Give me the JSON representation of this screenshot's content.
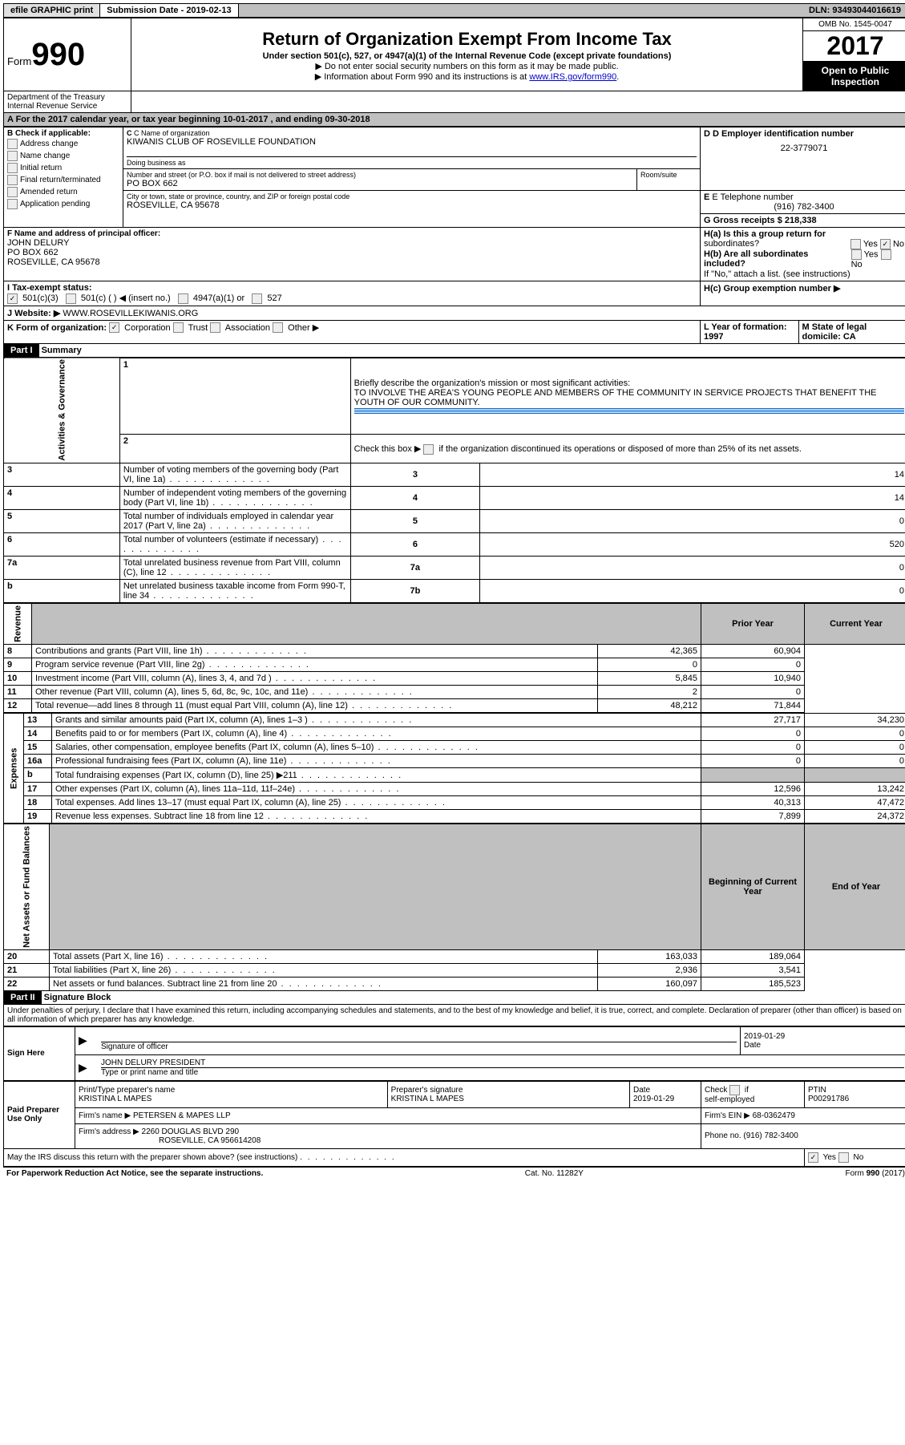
{
  "topbar": {
    "efile": "efile GRAPHIC print",
    "submission": "Submission Date - 2019-02-13",
    "dln": "DLN: 93493044016619"
  },
  "header": {
    "form_label": "Form",
    "form_num": "990",
    "dept1": "Department of the Treasury",
    "dept2": "Internal Revenue Service",
    "title": "Return of Organization Exempt From Income Tax",
    "subtitle": "Under section 501(c), 527, or 4947(a)(1) of the Internal Revenue Code (except private foundations)",
    "note1": "▶ Do not enter social security numbers on this form as it may be made public.",
    "note2": "▶ Information about Form 990 and its instructions is at ",
    "note2_link": "www.IRS.gov/form990",
    "omb": "OMB No. 1545-0047",
    "year": "2017",
    "inspect1": "Open to Public",
    "inspect2": "Inspection"
  },
  "sectionA": "A  For the 2017 calendar year, or tax year beginning 10-01-2017   , and ending 09-30-2018",
  "boxB": {
    "label": "B Check if applicable:",
    "items": [
      "Address change",
      "Name change",
      "Initial return",
      "Final return/terminated",
      "Amended return",
      "Application pending"
    ]
  },
  "boxC": {
    "label": "C Name of organization",
    "name": "KIWANIS CLUB OF ROSEVILLE FOUNDATION",
    "dba": "Doing business as",
    "addr_label": "Number and street (or P.O. box if mail is not delivered to street address)",
    "room": "Room/suite",
    "addr": "PO BOX 662",
    "city_label": "City or town, state or province, country, and ZIP or foreign postal code",
    "city": "ROSEVILLE, CA  95678"
  },
  "boxD": {
    "label": "D Employer identification number",
    "ein": "22-3779071"
  },
  "boxE": {
    "label": "E Telephone number",
    "phone": "(916) 782-3400"
  },
  "boxG": {
    "label": "G Gross receipts $ 218,338"
  },
  "boxF": {
    "label": "F  Name and address of principal officer:",
    "name": "JOHN DELURY",
    "addr": "PO BOX 662",
    "city": "ROSEVILLE, CA  95678"
  },
  "boxH": {
    "ha": "H(a)  Is this a group return for",
    "ha2": "subordinates?",
    "hb": "H(b)  Are all subordinates included?",
    "hb_note": "If \"No,\" attach a list. (see instructions)",
    "hc": "H(c)  Group exemption number ▶"
  },
  "boxI": {
    "label": "I  Tax-exempt status:",
    "opt1": "501(c)(3)",
    "opt2": "501(c) (   ) ◀ (insert no.)",
    "opt3": "4947(a)(1) or",
    "opt4": "527"
  },
  "boxJ": {
    "label": "J  Website: ▶",
    "val": "WWW.ROSEVILLEKIWANIS.ORG"
  },
  "boxK": {
    "label": "K Form of organization:",
    "opts": [
      "Corporation",
      "Trust",
      "Association",
      "Other ▶"
    ]
  },
  "boxL": "L Year of formation: 1997",
  "boxM": "M State of legal domicile: CA",
  "part1": {
    "title": "Part I",
    "subtitle": "Summary",
    "line1": "Briefly describe the organization's mission or most significant activities:",
    "mission": "TO INVOLVE THE AREA'S YOUNG PEOPLE AND MEMBERS OF THE COMMUNITY IN SERVICE PROJECTS THAT BENEFIT THE YOUTH OF OUR COMMUNITY.",
    "line2": "Check this box ▶         if the organization discontinued its operations or disposed of more than 25% of its net assets.",
    "sect_gov": "Activities & Governance",
    "sect_rev": "Revenue",
    "sect_exp": "Expenses",
    "sect_net": "Net Assets or Fund Balances",
    "prior": "Prior Year",
    "current": "Current Year",
    "begin": "Beginning of Current Year",
    "end": "End of Year",
    "rows_gov": [
      {
        "n": "3",
        "t": "Number of voting members of the governing body (Part VI, line 1a)",
        "c": "3",
        "v": "14"
      },
      {
        "n": "4",
        "t": "Number of independent voting members of the governing body (Part VI, line 1b)",
        "c": "4",
        "v": "14"
      },
      {
        "n": "5",
        "t": "Total number of individuals employed in calendar year 2017 (Part V, line 2a)",
        "c": "5",
        "v": "0"
      },
      {
        "n": "6",
        "t": "Total number of volunteers (estimate if necessary)",
        "c": "6",
        "v": "520"
      },
      {
        "n": "7a",
        "t": "Total unrelated business revenue from Part VIII, column (C), line 12",
        "c": "7a",
        "v": "0"
      },
      {
        "n": "b",
        "t": "Net unrelated business taxable income from Form 990-T, line 34",
        "c": "7b",
        "v": "0"
      }
    ],
    "rows_rev": [
      {
        "n": "8",
        "t": "Contributions and grants (Part VIII, line 1h)",
        "p": "42,365",
        "c": "60,904"
      },
      {
        "n": "9",
        "t": "Program service revenue (Part VIII, line 2g)",
        "p": "0",
        "c": "0"
      },
      {
        "n": "10",
        "t": "Investment income (Part VIII, column (A), lines 3, 4, and 7d )",
        "p": "5,845",
        "c": "10,940"
      },
      {
        "n": "11",
        "t": "Other revenue (Part VIII, column (A), lines 5, 6d, 8c, 9c, 10c, and 11e)",
        "p": "2",
        "c": "0"
      },
      {
        "n": "12",
        "t": "Total revenue—add lines 8 through 11 (must equal Part VIII, column (A), line 12)",
        "p": "48,212",
        "c": "71,844"
      }
    ],
    "rows_exp": [
      {
        "n": "13",
        "t": "Grants and similar amounts paid (Part IX, column (A), lines 1–3 )",
        "p": "27,717",
        "c": "34,230"
      },
      {
        "n": "14",
        "t": "Benefits paid to or for members (Part IX, column (A), line 4)",
        "p": "0",
        "c": "0"
      },
      {
        "n": "15",
        "t": "Salaries, other compensation, employee benefits (Part IX, column (A), lines 5–10)",
        "p": "0",
        "c": "0"
      },
      {
        "n": "16a",
        "t": "Professional fundraising fees (Part IX, column (A), line 11e)",
        "p": "0",
        "c": "0"
      },
      {
        "n": "b",
        "t": "Total fundraising expenses (Part IX, column (D), line 25) ▶211",
        "p": "",
        "c": ""
      },
      {
        "n": "17",
        "t": "Other expenses (Part IX, column (A), lines 11a–11d, 11f–24e)",
        "p": "12,596",
        "c": "13,242"
      },
      {
        "n": "18",
        "t": "Total expenses. Add lines 13–17 (must equal Part IX, column (A), line 25)",
        "p": "40,313",
        "c": "47,472"
      },
      {
        "n": "19",
        "t": "Revenue less expenses. Subtract line 18 from line 12",
        "p": "7,899",
        "c": "24,372"
      }
    ],
    "rows_net": [
      {
        "n": "20",
        "t": "Total assets (Part X, line 16)",
        "p": "163,033",
        "c": "189,064"
      },
      {
        "n": "21",
        "t": "Total liabilities (Part X, line 26)",
        "p": "2,936",
        "c": "3,541"
      },
      {
        "n": "22",
        "t": "Net assets or fund balances. Subtract line 21 from line 20",
        "p": "160,097",
        "c": "185,523"
      }
    ]
  },
  "part2": {
    "title": "Part II",
    "subtitle": "Signature Block",
    "decl": "Under penalties of perjury, I declare that I have examined this return, including accompanying schedules and statements, and to the best of my knowledge and belief, it is true, correct, and complete. Declaration of preparer (other than officer) is based on all information of which preparer has any knowledge.",
    "sign_here": "Sign Here",
    "sig_officer": "Signature of officer",
    "sig_date": "2019-01-29",
    "date_label": "Date",
    "officer_name": "JOHN DELURY PRESIDENT",
    "type_name": "Type or print name and title",
    "paid": "Paid Preparer Use Only",
    "prep_name_label": "Print/Type preparer's name",
    "prep_name": "KRISTINA L MAPES",
    "prep_sig_label": "Preparer's signature",
    "prep_sig": "KRISTINA L MAPES",
    "prep_date_label": "Date",
    "prep_date": "2019-01-29",
    "self_emp": "Check         if self-employed",
    "ptin_label": "PTIN",
    "ptin": "P00291786",
    "firm_name_label": "Firm's name     ▶",
    "firm_name": "PETERSEN & MAPES LLP",
    "firm_ein_label": "Firm's EIN ▶",
    "firm_ein": "68-0362479",
    "firm_addr_label": "Firm's address ▶",
    "firm_addr": "2260 DOUGLAS BLVD 290",
    "firm_city": "ROSEVILLE, CA  956614208",
    "firm_phone_label": "Phone no.",
    "firm_phone": "(916) 782-3400",
    "discuss": "May the IRS discuss this return with the preparer shown above? (see instructions)"
  },
  "footer": {
    "pra": "For Paperwork Reduction Act Notice, see the separate instructions.",
    "cat": "Cat. No. 11282Y",
    "form": "Form 990 (2017)"
  }
}
